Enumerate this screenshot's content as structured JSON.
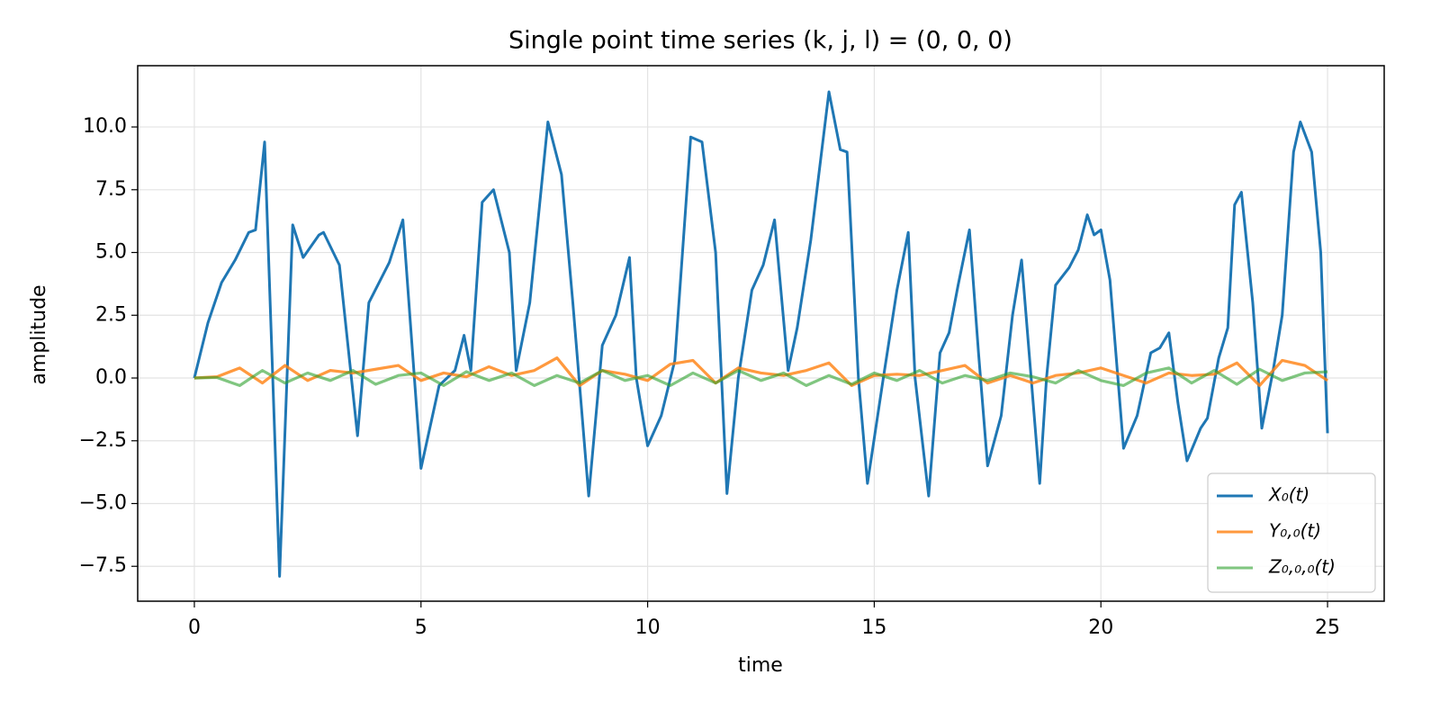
{
  "chart_data": {
    "type": "line",
    "title": "Single point time series (k, j, l) = (0, 0, 0)",
    "x_label": "time",
    "y_label": "amplitude",
    "xlim": [
      -1.25,
      26.25
    ],
    "ylim": [
      -8.89,
      12.44
    ],
    "xticks": [
      0,
      5,
      10,
      15,
      20,
      25
    ],
    "yticks": [
      {
        "value": -7.5,
        "label": "−7.5"
      },
      {
        "value": -5,
        "label": "−5.0"
      },
      {
        "value": -2.5,
        "label": "−2.5"
      },
      {
        "value": 0,
        "label": "0.0"
      },
      {
        "value": 2.5,
        "label": "2.5"
      },
      {
        "value": 5,
        "label": "5.0"
      },
      {
        "value": 7.5,
        "label": "7.5"
      },
      {
        "value": 10,
        "label": "10.0"
      }
    ],
    "grid": true,
    "legend": "lower right",
    "series": [
      {
        "name": "X₀(t)",
        "color": "#1f77b4",
        "opacity": 1,
        "x": [
          0,
          0.3,
          0.6,
          0.9,
          1.2,
          1.35,
          1.55,
          1.88,
          2.17,
          2.4,
          2.75,
          2.85,
          3.2,
          3.6,
          3.85,
          4.3,
          4.6,
          5.0,
          5.4,
          5.75,
          5.95,
          6.1,
          6.35,
          6.6,
          6.95,
          7.1,
          7.4,
          7.8,
          8.1,
          8.35,
          8.7,
          9.0,
          9.3,
          9.6,
          9.75,
          10.0,
          10.3,
          10.6,
          10.95,
          11.2,
          11.5,
          11.75,
          12.0,
          12.3,
          12.55,
          12.8,
          13.1,
          13.3,
          13.6,
          14.0,
          14.25,
          14.4,
          14.65,
          14.85,
          15.2,
          15.5,
          15.75,
          15.9,
          16.2,
          16.45,
          16.65,
          16.85,
          17.1,
          17.3,
          17.5,
          17.8,
          18.05,
          18.25,
          18.65,
          18.8,
          19.0,
          19.3,
          19.5,
          19.7,
          19.85,
          20.0,
          20.2,
          20.5,
          20.8,
          21.1,
          21.3,
          21.5,
          21.7,
          21.9,
          22.2,
          22.35,
          22.6,
          22.8,
          22.95,
          23.1,
          23.35,
          23.55,
          23.8,
          24.0,
          24.25,
          24.4,
          24.65,
          24.85,
          25.0
        ],
        "values": [
          0,
          2.2,
          3.8,
          4.7,
          5.8,
          5.9,
          9.4,
          -7.9,
          6.1,
          4.8,
          5.7,
          5.8,
          4.5,
          -2.3,
          3,
          4.6,
          6.3,
          -3.6,
          -0.3,
          0.3,
          1.7,
          0.3,
          7,
          7.5,
          5,
          0.3,
          3,
          10.2,
          8.1,
          3,
          -4.7,
          1.3,
          2.5,
          4.8,
          0,
          -2.7,
          -1.5,
          0.7,
          9.6,
          9.4,
          5,
          -4.6,
          0,
          3.5,
          4.5,
          6.3,
          0.3,
          2,
          5.5,
          11.4,
          9.1,
          9,
          0,
          -4.2,
          0,
          3.5,
          5.8,
          0,
          -4.7,
          1,
          1.8,
          3.7,
          5.9,
          1,
          -3.5,
          -1.5,
          2.5,
          4.7,
          -4.2,
          0,
          3.7,
          4.4,
          5.1,
          6.5,
          5.7,
          5.9,
          3.9,
          -2.8,
          -1.5,
          1,
          1.2,
          1.8,
          -1,
          -3.3,
          -2,
          -1.6,
          0.8,
          2,
          6.9,
          7.4,
          3,
          -2,
          0.3,
          2.5,
          9,
          10.2,
          9,
          5,
          -2.2
        ]
      },
      {
        "name": "Y₀,₀(t)",
        "color": "#ff7f0e",
        "opacity": 0.8,
        "x": [
          0,
          0.5,
          1,
          1.5,
          2,
          2.5,
          3,
          3.5,
          4,
          4.5,
          5,
          5.5,
          6,
          6.5,
          7,
          7.5,
          8,
          8.5,
          9,
          9.5,
          10,
          10.5,
          11,
          11.5,
          12,
          12.5,
          13,
          13.5,
          14,
          14.5,
          15,
          15.5,
          16,
          16.5,
          17,
          17.5,
          18,
          18.5,
          19,
          19.5,
          20,
          20.5,
          21,
          21.5,
          22,
          22.5,
          23,
          23.5,
          24,
          24.5,
          25
        ],
        "values": [
          0,
          0.05,
          0.4,
          -0.2,
          0.5,
          -0.1,
          0.3,
          0.2,
          0.35,
          0.5,
          -0.1,
          0.2,
          0.05,
          0.45,
          0.1,
          0.3,
          0.8,
          -0.3,
          0.3,
          0.15,
          -0.1,
          0.55,
          0.7,
          -0.2,
          0.4,
          0.2,
          0.1,
          0.3,
          0.6,
          -0.3,
          0.1,
          0.15,
          0.1,
          0.3,
          0.5,
          -0.2,
          0.1,
          -0.2,
          0.1,
          0.2,
          0.4,
          0.1,
          -0.2,
          0.2,
          0.1,
          0.15,
          0.6,
          -0.3,
          0.7,
          0.5,
          -0.1
        ]
      },
      {
        "name": "Z₀,₀,₀(t)",
        "color": "#2ca02c",
        "opacity": 0.6,
        "x": [
          0,
          0.5,
          1,
          1.5,
          2,
          2.5,
          3,
          3.5,
          4,
          4.5,
          5,
          5.5,
          6,
          6.5,
          7,
          7.5,
          8,
          8.5,
          9,
          9.5,
          10,
          10.5,
          11,
          11.5,
          12,
          12.5,
          13,
          13.5,
          14,
          14.5,
          15,
          15.5,
          16,
          16.5,
          17,
          17.5,
          18,
          18.5,
          19,
          19.5,
          20,
          20.5,
          21,
          21.5,
          22,
          22.5,
          23,
          23.5,
          24,
          24.5,
          25
        ],
        "values": [
          0,
          0.02,
          -0.3,
          0.3,
          -0.2,
          0.2,
          -0.1,
          0.3,
          -0.25,
          0.1,
          0.2,
          -0.3,
          0.25,
          -0.1,
          0.2,
          -0.3,
          0.1,
          -0.2,
          0.3,
          -0.1,
          0.1,
          -0.3,
          0.2,
          -0.2,
          0.3,
          -0.1,
          0.2,
          -0.3,
          0.1,
          -0.25,
          0.2,
          -0.1,
          0.3,
          -0.2,
          0.1,
          -0.1,
          0.2,
          0.05,
          -0.2,
          0.3,
          -0.1,
          -0.3,
          0.2,
          0.4,
          -0.2,
          0.3,
          -0.25,
          0.35,
          -0.1,
          0.2,
          0.25
        ]
      }
    ]
  }
}
